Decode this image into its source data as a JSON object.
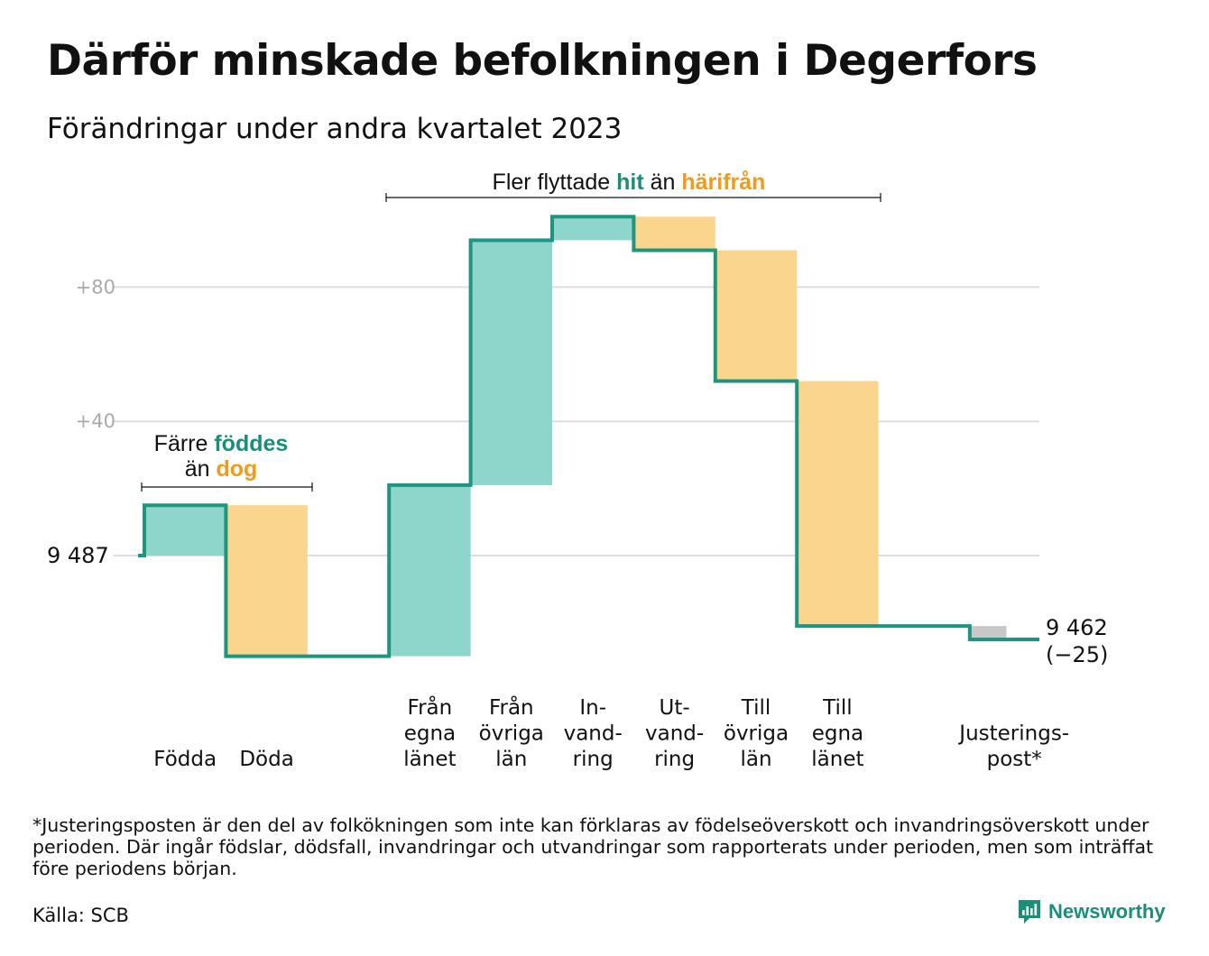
{
  "title": "Därför minskade befolkningen i Degerfors",
  "subtitle": "Förändringar under andra kvartalet 2023",
  "colors": {
    "increase": "#8ed5cc",
    "decrease": "#fad58e",
    "adjustment": "#c8c8c8",
    "line": "#1f9580",
    "teal_text": "#1b8e7a",
    "orange_text": "#f29a1b",
    "grid": "#dddddd",
    "tick_text": "#aaaaaa"
  },
  "annotations": {
    "births": {
      "line1_prefix": "Färre",
      "line1_highlight": "föddes",
      "line2_prefix": "än",
      "line2_highlight": "dog"
    },
    "migration": {
      "prefix": "Fler flyttade",
      "highlight1": "hit",
      "middle": "än",
      "highlight2": "härifrån"
    }
  },
  "chart_data": {
    "type": "waterfall",
    "title": "Därför minskade befolkningen i Degerfors",
    "subtitle": "Förändringar under andra kvartalet 2023",
    "start_value": 9487,
    "start_label": "9  487",
    "end_value": 9462,
    "end_label": "9 462",
    "end_change_label": "(−25)",
    "y_ticks": [
      {
        "value": 40,
        "label": "+40"
      },
      {
        "value": 80,
        "label": "+80"
      }
    ],
    "ylim": [
      -35,
      110
    ],
    "grid": true,
    "categories": [
      {
        "lines": [
          "Födda"
        ],
        "change": 15,
        "kind": "increase"
      },
      {
        "lines": [
          "Döda"
        ],
        "change": -45,
        "kind": "decrease"
      },
      {
        "lines": [],
        "change": 0,
        "kind": "none"
      },
      {
        "lines": [
          "Från",
          "egna",
          "länet"
        ],
        "change": 51,
        "kind": "increase"
      },
      {
        "lines": [
          "Från",
          "övriga",
          "län"
        ],
        "change": 73,
        "kind": "increase"
      },
      {
        "lines": [
          "In-",
          "vand-",
          "ring"
        ],
        "change": 7,
        "kind": "increase"
      },
      {
        "lines": [
          "Ut-",
          "vand-",
          "ring"
        ],
        "change": -10,
        "kind": "decrease"
      },
      {
        "lines": [
          "Till",
          "övriga",
          "län"
        ],
        "change": -39,
        "kind": "decrease"
      },
      {
        "lines": [
          "Till",
          "egna",
          "länet"
        ],
        "change": -73,
        "kind": "decrease"
      },
      {
        "lines": [],
        "change": 0,
        "kind": "none"
      },
      {
        "lines": [
          "Justerings-",
          "post*"
        ],
        "change": -4,
        "kind": "adjustment"
      }
    ]
  },
  "footnote": "*Justeringsposten är den del av folkökningen som inte kan förklaras av födelseöverskott och invandringsöverskott under perioden. Där ingår födslar, dödsfall, invandringar och utvandringar som rapporterats under perioden, men som inträffat före periodens början.",
  "source": "Källa: SCB",
  "brand": {
    "name": "Newsworthy",
    "icon": "newsworthy-logo-icon"
  }
}
